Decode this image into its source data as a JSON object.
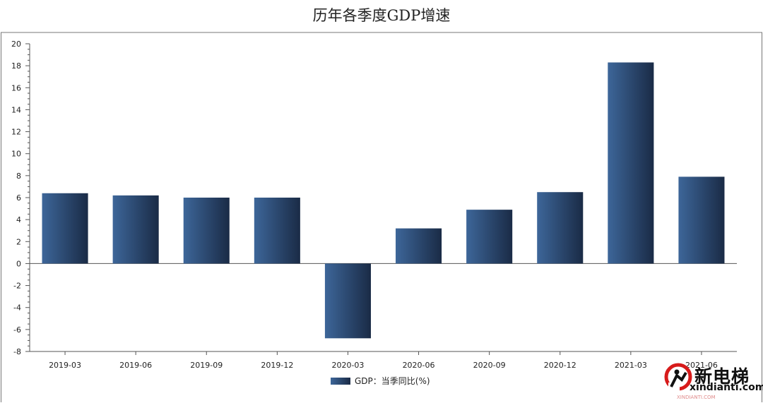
{
  "chart_data": {
    "type": "bar",
    "title": "历年各季度GDP增速",
    "categories": [
      "2019-03",
      "2019-06",
      "2019-09",
      "2019-12",
      "2020-03",
      "2020-06",
      "2020-09",
      "2020-12",
      "2021-03",
      "2021-06"
    ],
    "series": [
      {
        "name": "GDP：当季同比(%)",
        "values": [
          6.4,
          6.2,
          6.0,
          6.0,
          -6.8,
          3.2,
          4.9,
          6.5,
          18.3,
          7.9
        ]
      }
    ],
    "yticks": [
      "20",
      "18",
      "16",
      "14",
      "12",
      "10",
      "8",
      "6",
      "4",
      "2",
      "0",
      "-2",
      "-4",
      "-6",
      "-8"
    ],
    "ylim": [
      -8,
      20
    ],
    "grid": false,
    "legend_position": "bottom-center",
    "colors": {
      "bar_light": "#3d6699",
      "bar_dark": "#1a2b46",
      "axis": "#555555"
    }
  },
  "watermark": {
    "brand": "新电梯",
    "url": "xindianti.com",
    "sub": "XINDIANTI.COM"
  }
}
